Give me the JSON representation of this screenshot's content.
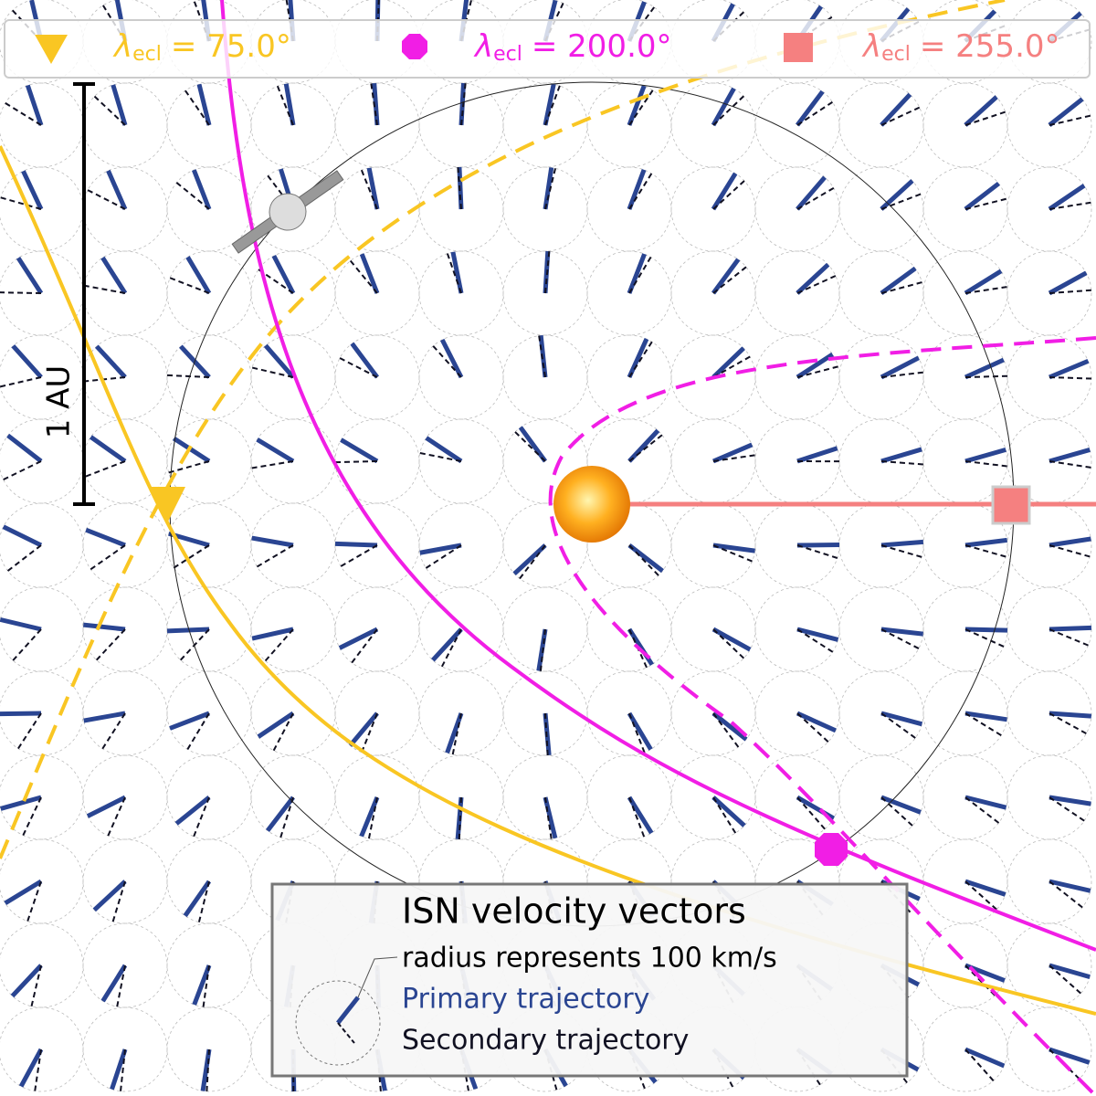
{
  "legend": {
    "entries": [
      {
        "symbol": "λ",
        "subscript": "ecl",
        "value": "= 75.0°"
      },
      {
        "symbol": "λ",
        "subscript": "ecl",
        "value": "= 200.0°"
      },
      {
        "symbol": "λ",
        "subscript": "ecl",
        "value": "= 255.0°"
      }
    ]
  },
  "scale_bar": {
    "label": "1 AU"
  },
  "key_box": {
    "title": "ISN velocity vectors",
    "subtitle": "radius represents 100 km/s",
    "primary": "Primary trajectory",
    "secondary": "Secondary trajectory"
  }
}
